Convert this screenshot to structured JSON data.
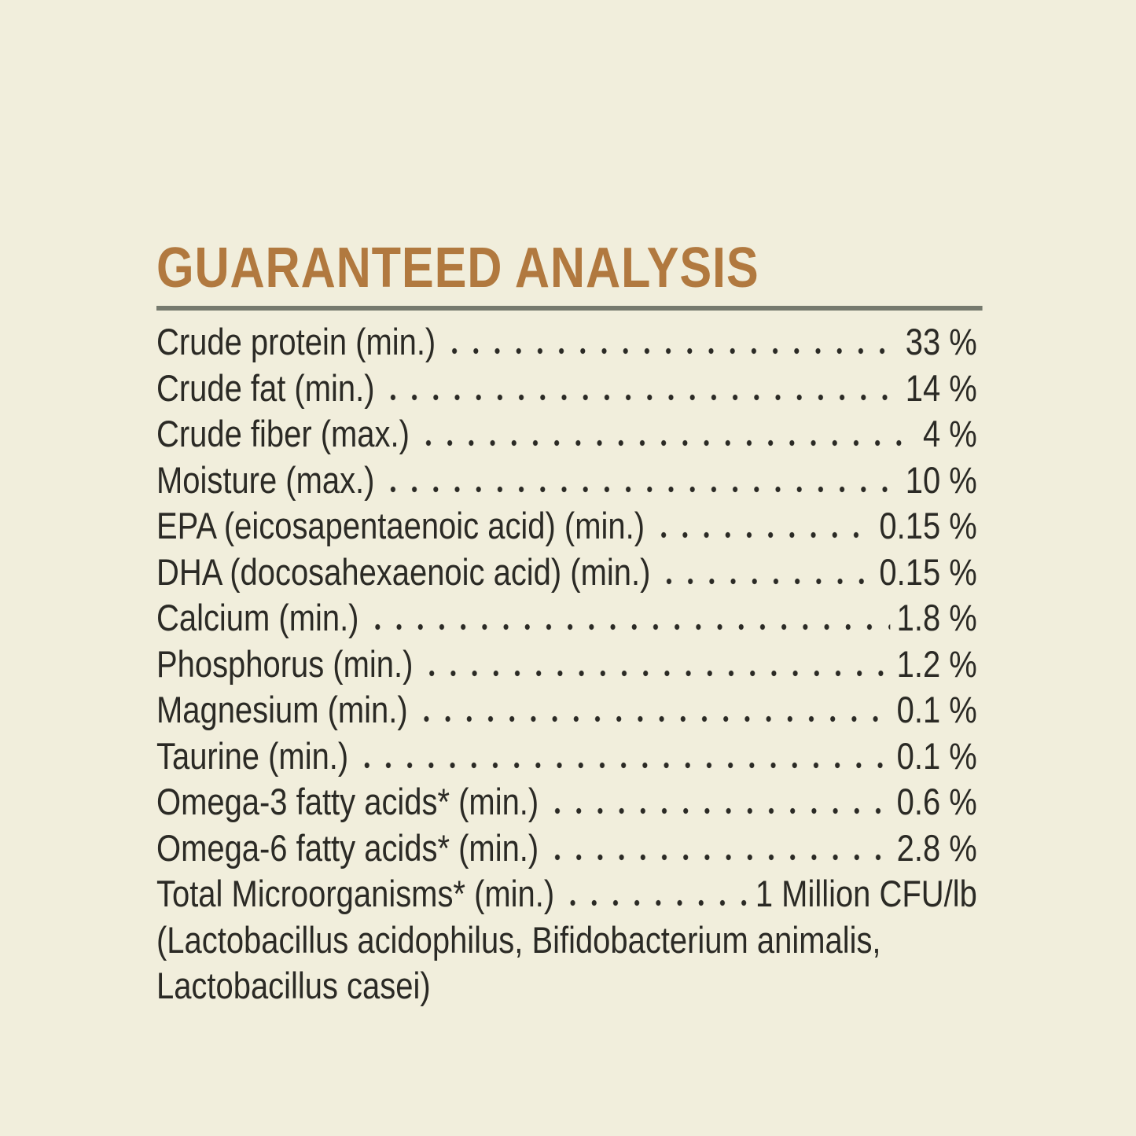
{
  "theme": {
    "background": "#f1eedc",
    "text_color": "#2b2a25",
    "heading_color": "#b1793f",
    "divider_color": "#767a6e"
  },
  "header": {
    "title": "GUARANTEED ANALYSIS"
  },
  "analysis": {
    "rows": [
      {
        "label": "Crude protein (min.)",
        "value": "33 %"
      },
      {
        "label": "Crude fat (min.)",
        "value": "14 %"
      },
      {
        "label": "Crude fiber (max.)",
        "value": "4 %"
      },
      {
        "label": "Moisture (max.)",
        "value": "10 %"
      },
      {
        "label": "EPA (eicosapentaenoic acid) (min.)",
        "value": "0.15 %"
      },
      {
        "label": "DHA (docosahexaenoic acid) (min.)",
        "value": "0.15 %"
      },
      {
        "label": "Calcium (min.)",
        "value": "1.8 %"
      },
      {
        "label": "Phosphorus (min.)",
        "value": "1.2 %"
      },
      {
        "label": "Magnesium (min.)",
        "value": "0.1 %"
      },
      {
        "label": "Taurine (min.)",
        "value": "0.1 %"
      },
      {
        "label": "Omega-3 fatty acids* (min.)",
        "value": "0.6 %"
      },
      {
        "label": "Omega-6 fatty acids* (min.)",
        "value": "2.8 %"
      },
      {
        "label": "Total Microorganisms* (min.)",
        "value": "1 Million CFU/lb"
      }
    ],
    "footnote_lines": [
      "(Lactobacillus acidophilus, Bifidobacterium animalis,",
      "Lactobacillus casei)"
    ]
  }
}
